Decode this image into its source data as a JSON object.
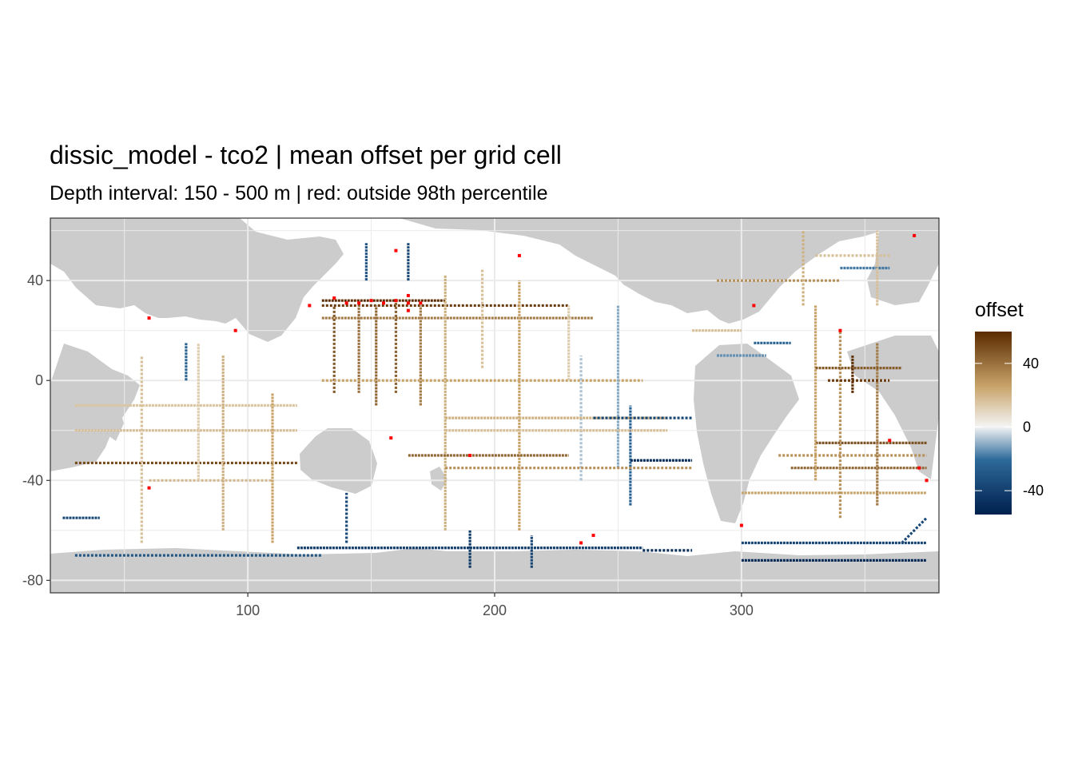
{
  "chart_data": {
    "type": "heatmap",
    "title": "dissic_model - tco2  | mean offset per grid cell",
    "subtitle": "Depth interval: 150 - 500 m | red: outside 98th percentile",
    "xlabel": "",
    "ylabel": "",
    "xlim": [
      20,
      380
    ],
    "ylim": [
      -85,
      65
    ],
    "x_ticks": [
      100,
      200,
      300
    ],
    "y_ticks": [
      40,
      0,
      -40,
      -80
    ],
    "x_tick_labels": [
      "100",
      "200",
      "300"
    ],
    "y_tick_labels": [
      "40",
      "0",
      "-40",
      "-80"
    ],
    "grid": true,
    "legend": {
      "title": "offset",
      "position": "right",
      "range": [
        -55,
        60
      ],
      "breaks": [
        40,
        0,
        -40
      ],
      "break_labels": [
        "40",
        "0",
        "-40"
      ]
    },
    "colors": {
      "panel_background": "#ffffff",
      "land": "#cccccc",
      "gridline": "#ebebeb",
      "outlier": "#ff0000",
      "scale_low": "#00204d",
      "scale_mid": "#f4f4f4",
      "scale_high": "#5a2a00"
    },
    "tracks": [
      {
        "x": [
          130,
          230
        ],
        "y": [
          30,
          30
        ],
        "value": 55
      },
      {
        "x": [
          130,
          180
        ],
        "y": [
          32,
          32
        ],
        "value": 62
      },
      {
        "x": [
          130,
          240
        ],
        "y": [
          25,
          25
        ],
        "value": 40
      },
      {
        "x": [
          135,
          135
        ],
        "y": [
          -5,
          30
        ],
        "value": 48
      },
      {
        "x": [
          145,
          145
        ],
        "y": [
          -5,
          30
        ],
        "value": 42
      },
      {
        "x": [
          152,
          152
        ],
        "y": [
          -10,
          30
        ],
        "value": 45
      },
      {
        "x": [
          160,
          160
        ],
        "y": [
          -5,
          32
        ],
        "value": 46
      },
      {
        "x": [
          170,
          170
        ],
        "y": [
          -10,
          30
        ],
        "value": 40
      },
      {
        "x": [
          180,
          180
        ],
        "y": [
          -60,
          42
        ],
        "value": 25
      },
      {
        "x": [
          130,
          260
        ],
        "y": [
          0,
          0
        ],
        "value": 30
      },
      {
        "x": [
          165,
          165
        ],
        "y": [
          40,
          55
        ],
        "value": -40
      },
      {
        "x": [
          148,
          148
        ],
        "y": [
          40,
          55
        ],
        "value": -35
      },
      {
        "x": [
          195,
          195
        ],
        "y": [
          5,
          45
        ],
        "value": 20
      },
      {
        "x": [
          210,
          210
        ],
        "y": [
          -60,
          40
        ],
        "value": 30
      },
      {
        "x": [
          230,
          230
        ],
        "y": [
          0,
          30
        ],
        "value": 15
      },
      {
        "x": [
          235,
          235
        ],
        "y": [
          -40,
          10
        ],
        "value": -10
      },
      {
        "x": [
          250,
          250
        ],
        "y": [
          -35,
          30
        ],
        "value": -15
      },
      {
        "x": [
          255,
          255
        ],
        "y": [
          -50,
          -10
        ],
        "value": -30
      },
      {
        "x": [
          180,
          280
        ],
        "y": [
          -35,
          -35
        ],
        "value": 35
      },
      {
        "x": [
          165,
          230
        ],
        "y": [
          -30,
          -30
        ],
        "value": 45
      },
      {
        "x": [
          180,
          270
        ],
        "y": [
          -15,
          -15
        ],
        "value": 25
      },
      {
        "x": [
          240,
          280
        ],
        "y": [
          -15,
          -15
        ],
        "value": -40
      },
      {
        "x": [
          255,
          280
        ],
        "y": [
          -32,
          -32
        ],
        "value": -50
      },
      {
        "x": [
          180,
          270
        ],
        "y": [
          -20,
          -20
        ],
        "value": 20
      },
      {
        "x": [
          30,
          120
        ],
        "y": [
          -33,
          -33
        ],
        "value": 52
      },
      {
        "x": [
          30,
          120
        ],
        "y": [
          -20,
          -20
        ],
        "value": 20
      },
      {
        "x": [
          30,
          120
        ],
        "y": [
          -10,
          -10
        ],
        "value": 18
      },
      {
        "x": [
          60,
          110
        ],
        "y": [
          -40,
          -40
        ],
        "value": 22
      },
      {
        "x": [
          90,
          90
        ],
        "y": [
          -60,
          10
        ],
        "value": 25
      },
      {
        "x": [
          80,
          80
        ],
        "y": [
          -40,
          15
        ],
        "value": 15
      },
      {
        "x": [
          57,
          57
        ],
        "y": [
          -65,
          10
        ],
        "value": 20
      },
      {
        "x": [
          110,
          110
        ],
        "y": [
          -65,
          -5
        ],
        "value": 30
      },
      {
        "x": [
          75,
          75
        ],
        "y": [
          0,
          15
        ],
        "value": -30
      },
      {
        "x": [
          30,
          130
        ],
        "y": [
          -70,
          -70
        ],
        "value": -35
      },
      {
        "x": [
          25,
          40
        ],
        "y": [
          -55,
          -55
        ],
        "value": -40
      },
      {
        "x": [
          120,
          260
        ],
        "y": [
          -67,
          -67
        ],
        "value": -45
      },
      {
        "x": [
          140,
          140
        ],
        "y": [
          -65,
          -45
        ],
        "value": -40
      },
      {
        "x": [
          190,
          190
        ],
        "y": [
          -75,
          -60
        ],
        "value": -45
      },
      {
        "x": [
          215,
          215
        ],
        "y": [
          -75,
          -62
        ],
        "value": -40
      },
      {
        "x": [
          260,
          280
        ],
        "y": [
          -68,
          -68
        ],
        "value": -50
      },
      {
        "x": [
          300,
          375
        ],
        "y": [
          -65,
          -65
        ],
        "value": -40
      },
      {
        "x": [
          320,
          375
        ],
        "y": [
          -35,
          -35
        ],
        "value": 45
      },
      {
        "x": [
          315,
          375
        ],
        "y": [
          -30,
          -30
        ],
        "value": 35
      },
      {
        "x": [
          330,
          375
        ],
        "y": [
          -25,
          -25
        ],
        "value": 50
      },
      {
        "x": [
          300,
          375
        ],
        "y": [
          -45,
          -45
        ],
        "value": 30
      },
      {
        "x": [
          340,
          340
        ],
        "y": [
          -55,
          20
        ],
        "value": 35
      },
      {
        "x": [
          355,
          355
        ],
        "y": [
          -50,
          15
        ],
        "value": 40
      },
      {
        "x": [
          330,
          330
        ],
        "y": [
          -40,
          30
        ],
        "value": 30
      },
      {
        "x": [
          335,
          360
        ],
        "y": [
          0,
          0
        ],
        "value": 55
      },
      {
        "x": [
          330,
          365
        ],
        "y": [
          5,
          5
        ],
        "value": 48
      },
      {
        "x": [
          345,
          345
        ],
        "y": [
          -5,
          10
        ],
        "value": 58
      },
      {
        "x": [
          290,
          340
        ],
        "y": [
          40,
          40
        ],
        "value": 35
      },
      {
        "x": [
          280,
          300
        ],
        "y": [
          20,
          20
        ],
        "value": 20
      },
      {
        "x": [
          305,
          320
        ],
        "y": [
          15,
          15
        ],
        "value": -30
      },
      {
        "x": [
          330,
          360
        ],
        "y": [
          50,
          50
        ],
        "value": 20
      },
      {
        "x": [
          340,
          360
        ],
        "y": [
          45,
          45
        ],
        "value": -25
      },
      {
        "x": [
          290,
          310
        ],
        "y": [
          10,
          10
        ],
        "value": -20
      },
      {
        "x": [
          325,
          325
        ],
        "y": [
          30,
          60
        ],
        "value": 25
      },
      {
        "x": [
          355,
          355
        ],
        "y": [
          30,
          60
        ],
        "value": 20
      },
      {
        "x": [
          300,
          375
        ],
        "y": [
          -72,
          -72
        ],
        "value": -50
      },
      {
        "x": [
          365,
          375
        ],
        "y": [
          -65,
          -55
        ],
        "value": -40
      }
    ],
    "outliers": [
      {
        "x": 140,
        "y": 31
      },
      {
        "x": 145,
        "y": 31
      },
      {
        "x": 150,
        "y": 32
      },
      {
        "x": 155,
        "y": 31
      },
      {
        "x": 160,
        "y": 32
      },
      {
        "x": 165,
        "y": 31
      },
      {
        "x": 170,
        "y": 31
      },
      {
        "x": 135,
        "y": 33
      },
      {
        "x": 165,
        "y": 34
      },
      {
        "x": 165,
        "y": 28
      },
      {
        "x": 125,
        "y": 30
      },
      {
        "x": 160,
        "y": 52
      },
      {
        "x": 210,
        "y": 50
      },
      {
        "x": 60,
        "y": 25
      },
      {
        "x": 95,
        "y": 20
      },
      {
        "x": 370,
        "y": 58
      },
      {
        "x": 340,
        "y": 20
      },
      {
        "x": 375,
        "y": -40
      },
      {
        "x": 372,
        "y": -35
      },
      {
        "x": 360,
        "y": -24
      },
      {
        "x": 300,
        "y": -58
      },
      {
        "x": 240,
        "y": -62
      },
      {
        "x": 235,
        "y": -65
      },
      {
        "x": 190,
        "y": -30
      },
      {
        "x": 158,
        "y": -23
      },
      {
        "x": 60,
        "y": -43
      },
      {
        "x": 305,
        "y": 30
      }
    ]
  }
}
